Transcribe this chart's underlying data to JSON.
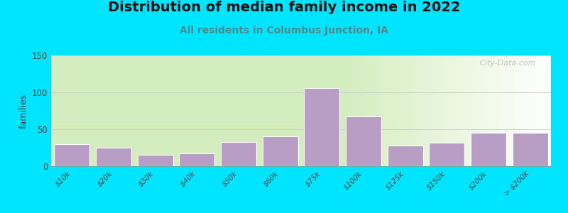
{
  "title": "Distribution of median family income in 2022",
  "subtitle": "All residents in Columbus Junction, IA",
  "ylabel": "families",
  "categories": [
    "$10k",
    "$20k",
    "$30k",
    "$40k",
    "$50k",
    "$60k",
    "$75k",
    "$100k",
    "$125k",
    "$150k",
    "$200k",
    "> $200k"
  ],
  "values": [
    30,
    25,
    15,
    17,
    33,
    40,
    106,
    67,
    28,
    32,
    45,
    45
  ],
  "bar_color": "#b89ec4",
  "bar_edge_color": "#ffffff",
  "background_outer": "#00e5ff",
  "background_plot_top_left": "#d4edbe",
  "background_plot_top_right": "#f5eef8",
  "ylim": [
    0,
    150
  ],
  "yticks": [
    0,
    50,
    100,
    150
  ],
  "title_fontsize": 14,
  "subtitle_fontsize": 10,
  "subtitle_color": "#4a8a8a",
  "ylabel_fontsize": 9,
  "watermark": "City-Data.com"
}
